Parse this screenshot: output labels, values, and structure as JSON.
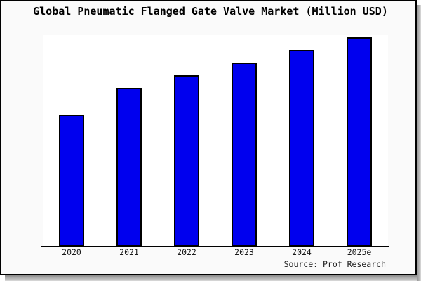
{
  "window": {
    "background": "#fafafa",
    "plot_background": "#ffffff",
    "frame_color": "#000000"
  },
  "colors": {
    "bar_fill": "#0000ee",
    "bar_outline": "#000000",
    "axis": "#000000",
    "text": "#1a1a1a"
  },
  "source_caption": "Source: Prof Research",
  "chart_data": {
    "type": "bar",
    "title": "Global Pneumatic Flanged Gate Valve Market (Million USD)",
    "categories": [
      "2020",
      "2021",
      "2022",
      "2023",
      "2024",
      "2025e"
    ],
    "values": [
      63,
      76,
      82,
      88,
      94,
      100
    ],
    "xlabel": "",
    "ylabel": "",
    "ylim": [
      0,
      101
    ],
    "grid": false,
    "legend": false,
    "y_axis_shown": false,
    "bar_color": "#0000ee",
    "source": "Source: Prof Research"
  }
}
